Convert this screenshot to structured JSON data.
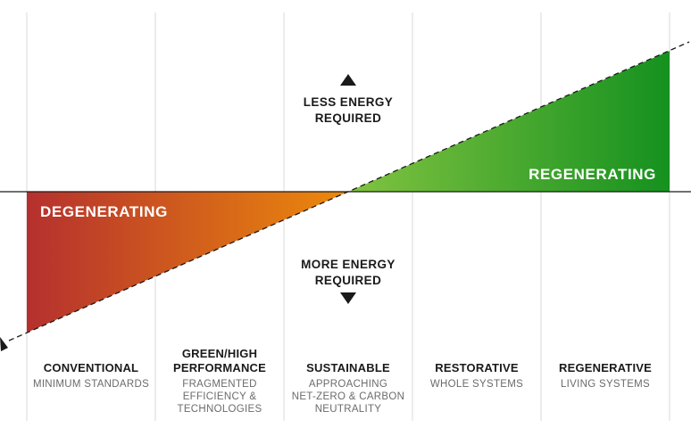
{
  "zones": {
    "upper_label": "REGENERATING",
    "lower_label": "DEGENERATING"
  },
  "energy": {
    "less": [
      "LESS ENERGY",
      "REQUIRED"
    ],
    "more": [
      "MORE ENERGY",
      "REQUIRED"
    ]
  },
  "columns": [
    {
      "title": [
        "CONVENTIONAL"
      ],
      "subtitle": [
        "MINIMUM STANDARDS"
      ]
    },
    {
      "title": [
        "GREEN/HIGH",
        "PERFORMANCE"
      ],
      "subtitle": [
        "FRAGMENTED",
        "EFFICIENCY &",
        "TECHNOLOGIES"
      ]
    },
    {
      "title": [
        "SUSTAINABLE"
      ],
      "subtitle": [
        "APPROACHING",
        "NET-ZERO & CARBON",
        "NEUTRALITY"
      ]
    },
    {
      "title": [
        "RESTORATIVE"
      ],
      "subtitle": [
        "WHOLE SYSTEMS"
      ]
    },
    {
      "title": [
        "REGENERATIVE"
      ],
      "subtitle": [
        "LIVING SYSTEMS"
      ]
    }
  ],
  "colors": {
    "degenerate_start": "#b5302e",
    "degenerate_end": "#ec8a0b",
    "regenerate_start": "#82c341",
    "regenerate_end": "#15911f",
    "grid": "#d9d9d9",
    "axis": "#1a1a1a"
  }
}
